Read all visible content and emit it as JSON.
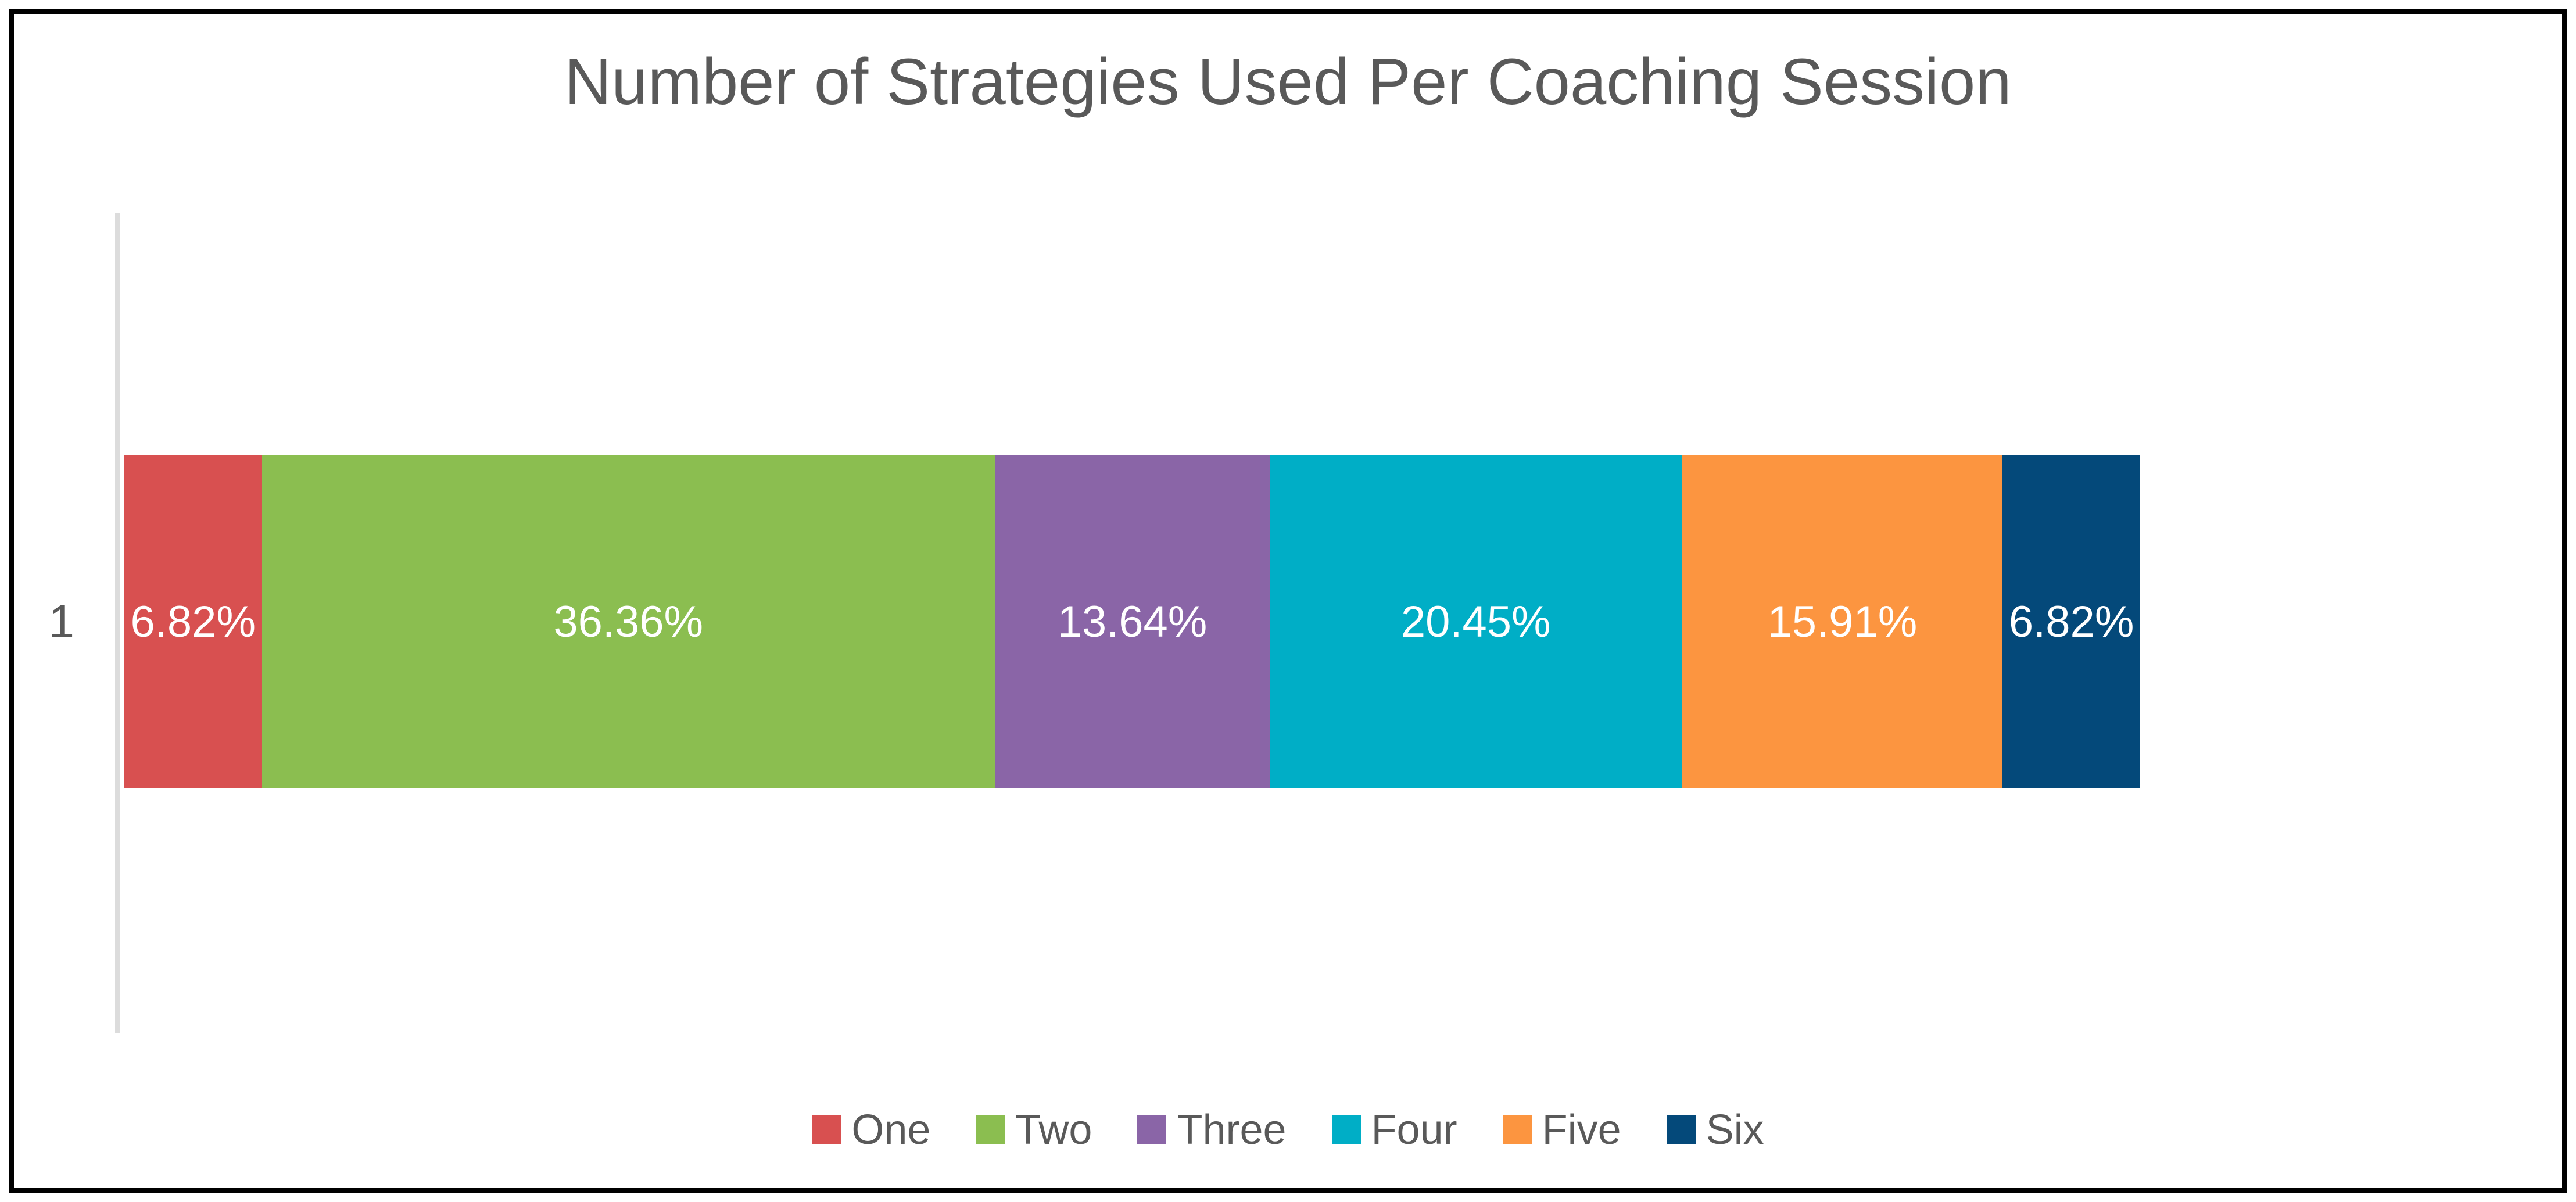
{
  "frame": {
    "border_color": "#000000",
    "background": "#FFFFFF"
  },
  "chart": {
    "title": "Number of Strategies Used Per Coaching Session",
    "title_color": "#595959",
    "axis": {
      "category_label": "1",
      "line_color": "#DCDCDC",
      "label_color": "#595959"
    },
    "data_label_color": "#FFFFFF",
    "legend_text_color": "#595959"
  },
  "chart_data": {
    "type": "bar",
    "subtype": "stacked-horizontal-100pct",
    "title": "Number of Strategies Used Per Coaching Session",
    "categories": [
      "1"
    ],
    "series": [
      {
        "name": "One",
        "values": [
          6.82
        ],
        "label": "6.82%",
        "color": "#D85050"
      },
      {
        "name": "Two",
        "values": [
          36.36
        ],
        "label": "36.36%",
        "color": "#8BBE50"
      },
      {
        "name": "Three",
        "values": [
          13.64
        ],
        "label": "13.64%",
        "color": "#8A65A7"
      },
      {
        "name": "Four",
        "values": [
          20.45
        ],
        "label": "20.45%",
        "color": "#00AEC6"
      },
      {
        "name": "Five",
        "values": [
          15.91
        ],
        "label": "15.91%",
        "color": "#FC9540"
      },
      {
        "name": "Six",
        "values": [
          6.82
        ],
        "label": "6.82%",
        "color": "#04497A"
      }
    ],
    "value_unit": "percent",
    "xlim": [
      0,
      100
    ],
    "grid": false,
    "legend_position": "bottom"
  }
}
